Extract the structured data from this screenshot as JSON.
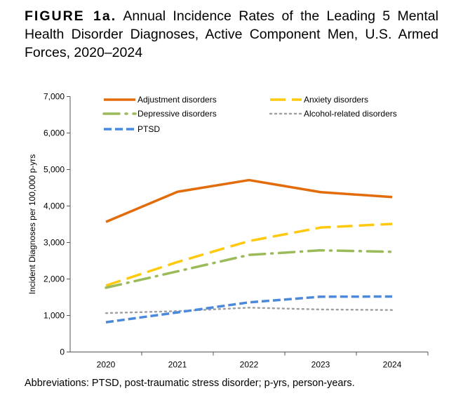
{
  "title": {
    "label": "FIGURE 1a.",
    "text": "Annual Incidence Rates of the Leading 5 Mental Health Disorder Diagnoses, Active Component Men, U.S. Armed Forces, 2020–2024"
  },
  "footnote": "Abbreviations: PTSD, post-traumatic stress disorder; p-yrs, person-years.",
  "chart_data": {
    "type": "line",
    "title": "FIGURE 1a. Annual Incidence Rates of the Leading 5 Mental Health Disorder Diagnoses, Active Component Men, U.S. Armed Forces, 2020–2024",
    "xlabel": "",
    "ylabel": "Incident Diagnoses per 100,000 p-yrs",
    "categories": [
      "2020",
      "2021",
      "2022",
      "2023",
      "2024"
    ],
    "ylim": [
      0,
      7000
    ],
    "yticks": [
      "0",
      "1,000",
      "2,000",
      "3,000",
      "4,000",
      "5,000",
      "6,000",
      "7,000"
    ],
    "grid": false,
    "legend": "top",
    "series": [
      {
        "name": "Adjustment disorders",
        "values": [
          3565,
          4390,
          4710,
          4380,
          4245
        ],
        "color": "#E36C0A",
        "style": "solid"
      },
      {
        "name": "Anxiety disorders",
        "values": [
          1820,
          2465,
          3040,
          3410,
          3510
        ],
        "color": "#FFC90E",
        "style": "long-dash"
      },
      {
        "name": "Depressive disorders",
        "values": [
          1760,
          2210,
          2660,
          2785,
          2745
        ],
        "color": "#9BBB59",
        "style": "dash-dot"
      },
      {
        "name": "Alcohol-related disorders",
        "values": [
          1065,
          1120,
          1215,
          1165,
          1150
        ],
        "color": "#A0A0A0",
        "style": "dotted"
      },
      {
        "name": "PTSD",
        "values": [
          815,
          1085,
          1360,
          1515,
          1520
        ],
        "color": "#4A89DC",
        "style": "dashed"
      }
    ]
  }
}
